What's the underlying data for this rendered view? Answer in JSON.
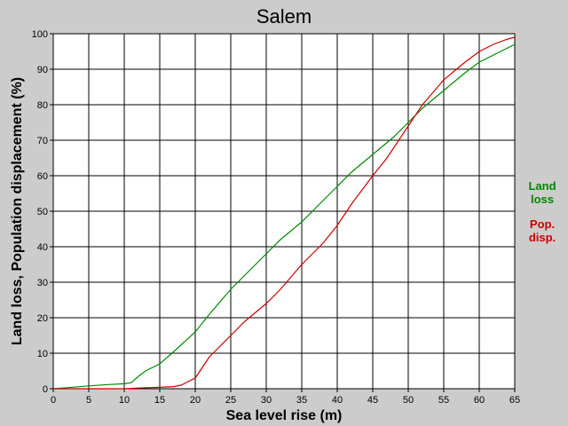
{
  "chart_data": {
    "type": "line",
    "title": "Salem",
    "xlabel": "Sea level rise (m)",
    "ylabel": "Land loss, Population displacement (%)",
    "xlim": [
      0,
      65
    ],
    "ylim": [
      0,
      100
    ],
    "xticks": [
      0,
      5,
      10,
      15,
      20,
      25,
      30,
      35,
      40,
      45,
      50,
      55,
      60,
      65
    ],
    "yticks": [
      0,
      10,
      20,
      30,
      40,
      50,
      60,
      70,
      80,
      90,
      100
    ],
    "grid": true,
    "legend_position": "right",
    "series": [
      {
        "name": "Land loss",
        "legend_lines": [
          "Land",
          "loss"
        ],
        "color": "#008800",
        "x": [
          0,
          2,
          5,
          8,
          10,
          11,
          12,
          13,
          14,
          15,
          17,
          20,
          22,
          25,
          27,
          30,
          32,
          35,
          38,
          40,
          42,
          45,
          48,
          50,
          52,
          55,
          58,
          60,
          62,
          65
        ],
        "y": [
          0,
          0.3,
          0.8,
          1.2,
          1.4,
          1.7,
          3.5,
          5,
          6,
          7,
          10.5,
          16,
          21,
          28,
          32,
          38,
          42,
          47,
          53,
          57,
          61,
          66,
          71,
          75,
          79,
          84,
          89,
          92,
          94,
          97
        ]
      },
      {
        "name": "Pop. disp.",
        "legend_lines": [
          "Pop.",
          "disp."
        ],
        "color": "#cc0000",
        "x": [
          0,
          5,
          10,
          12,
          15,
          17,
          18,
          19,
          20,
          21,
          22,
          23,
          25,
          27,
          30,
          32,
          35,
          38,
          40,
          42,
          45,
          47,
          50,
          52,
          55,
          58,
          60,
          62,
          64,
          65
        ],
        "y": [
          0,
          0,
          0,
          0.2,
          0.4,
          0.6,
          1,
          2,
          3,
          6,
          9,
          11,
          15,
          19,
          24,
          28,
          35,
          41,
          46,
          52,
          60,
          65,
          74,
          80,
          87,
          92,
          95,
          97,
          98.5,
          99
        ]
      }
    ]
  }
}
